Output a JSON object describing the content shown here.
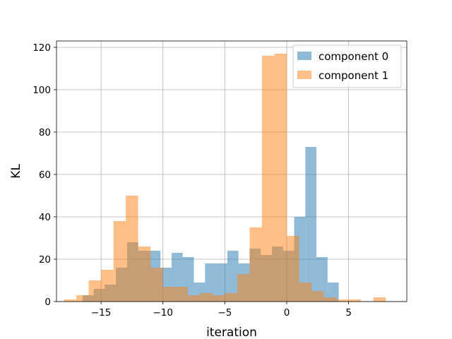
{
  "chart_data": {
    "type": "bar",
    "xlabel": "iteration",
    "ylabel": "KL",
    "xlim": [
      -18.6,
      9.7
    ],
    "ylim": [
      0,
      123
    ],
    "xticks": [
      -15,
      -10,
      -5,
      0,
      5
    ],
    "xtick_labels": [
      "−15",
      "−10",
      "−5",
      "0",
      "5"
    ],
    "yticks": [
      0,
      20,
      40,
      60,
      80,
      100,
      120
    ],
    "grid": true,
    "legend_position": "top-right",
    "series": [
      {
        "name": "component 0",
        "color": "#1f77b4",
        "opacity": 0.5,
        "bins": [
          {
            "x0": -16.5,
            "x1": -15.6,
            "count": 3
          },
          {
            "x0": -15.6,
            "x1": -14.7,
            "count": 6
          },
          {
            "x0": -14.7,
            "x1": -13.8,
            "count": 8
          },
          {
            "x0": -13.8,
            "x1": -12.9,
            "count": 16
          },
          {
            "x0": -12.9,
            "x1": -12.0,
            "count": 28
          },
          {
            "x0": -12.0,
            "x1": -11.1,
            "count": 24
          },
          {
            "x0": -11.1,
            "x1": -10.2,
            "count": 24
          },
          {
            "x0": -10.2,
            "x1": -9.3,
            "count": 16
          },
          {
            "x0": -9.3,
            "x1": -8.4,
            "count": 23
          },
          {
            "x0": -8.4,
            "x1": -7.5,
            "count": 21
          },
          {
            "x0": -7.5,
            "x1": -6.6,
            "count": 9
          },
          {
            "x0": -6.6,
            "x1": -5.7,
            "count": 18
          },
          {
            "x0": -5.7,
            "x1": -4.8,
            "count": 18
          },
          {
            "x0": -4.8,
            "x1": -3.9,
            "count": 24
          },
          {
            "x0": -3.9,
            "x1": -3.0,
            "count": 18
          },
          {
            "x0": -3.0,
            "x1": -2.1,
            "count": 25
          },
          {
            "x0": -2.1,
            "x1": -1.2,
            "count": 22
          },
          {
            "x0": -1.2,
            "x1": -0.3,
            "count": 26
          },
          {
            "x0": -0.3,
            "x1": 0.6,
            "count": 24
          },
          {
            "x0": 0.6,
            "x1": 1.5,
            "count": 40
          },
          {
            "x0": 1.5,
            "x1": 2.4,
            "count": 73
          },
          {
            "x0": 2.4,
            "x1": 3.3,
            "count": 21
          },
          {
            "x0": 3.3,
            "x1": 4.2,
            "count": 9
          }
        ]
      },
      {
        "name": "component 1",
        "color": "#ff7f0e",
        "opacity": 0.5,
        "bins": [
          {
            "x0": -18.0,
            "x1": -17.0,
            "count": 1
          },
          {
            "x0": -17.0,
            "x1": -16.0,
            "count": 3
          },
          {
            "x0": -16.0,
            "x1": -15.0,
            "count": 10
          },
          {
            "x0": -15.0,
            "x1": -14.0,
            "count": 15
          },
          {
            "x0": -14.0,
            "x1": -13.0,
            "count": 38
          },
          {
            "x0": -13.0,
            "x1": -12.0,
            "count": 50
          },
          {
            "x0": -12.0,
            "x1": -11.0,
            "count": 26
          },
          {
            "x0": -11.0,
            "x1": -10.0,
            "count": 16
          },
          {
            "x0": -10.0,
            "x1": -9.0,
            "count": 7
          },
          {
            "x0": -9.0,
            "x1": -8.0,
            "count": 7
          },
          {
            "x0": -8.0,
            "x1": -7.0,
            "count": 3
          },
          {
            "x0": -7.0,
            "x1": -6.0,
            "count": 4
          },
          {
            "x0": -6.0,
            "x1": -5.0,
            "count": 3
          },
          {
            "x0": -5.0,
            "x1": -4.0,
            "count": 4
          },
          {
            "x0": -4.0,
            "x1": -3.0,
            "count": 13
          },
          {
            "x0": -3.0,
            "x1": -2.0,
            "count": 35
          },
          {
            "x0": -2.0,
            "x1": -1.0,
            "count": 116
          },
          {
            "x0": -1.0,
            "x1": 0.0,
            "count": 117
          },
          {
            "x0": 0.0,
            "x1": 1.0,
            "count": 31
          },
          {
            "x0": 1.0,
            "x1": 2.0,
            "count": 9
          },
          {
            "x0": 2.0,
            "x1": 3.0,
            "count": 5
          },
          {
            "x0": 3.0,
            "x1": 4.0,
            "count": 2
          },
          {
            "x0": 4.0,
            "x1": 5.0,
            "count": 1
          },
          {
            "x0": 5.0,
            "x1": 6.0,
            "count": 1
          },
          {
            "x0": 6.0,
            "x1": 7.0,
            "count": 0
          },
          {
            "x0": 7.0,
            "x1": 8.0,
            "count": 2
          }
        ]
      }
    ]
  }
}
